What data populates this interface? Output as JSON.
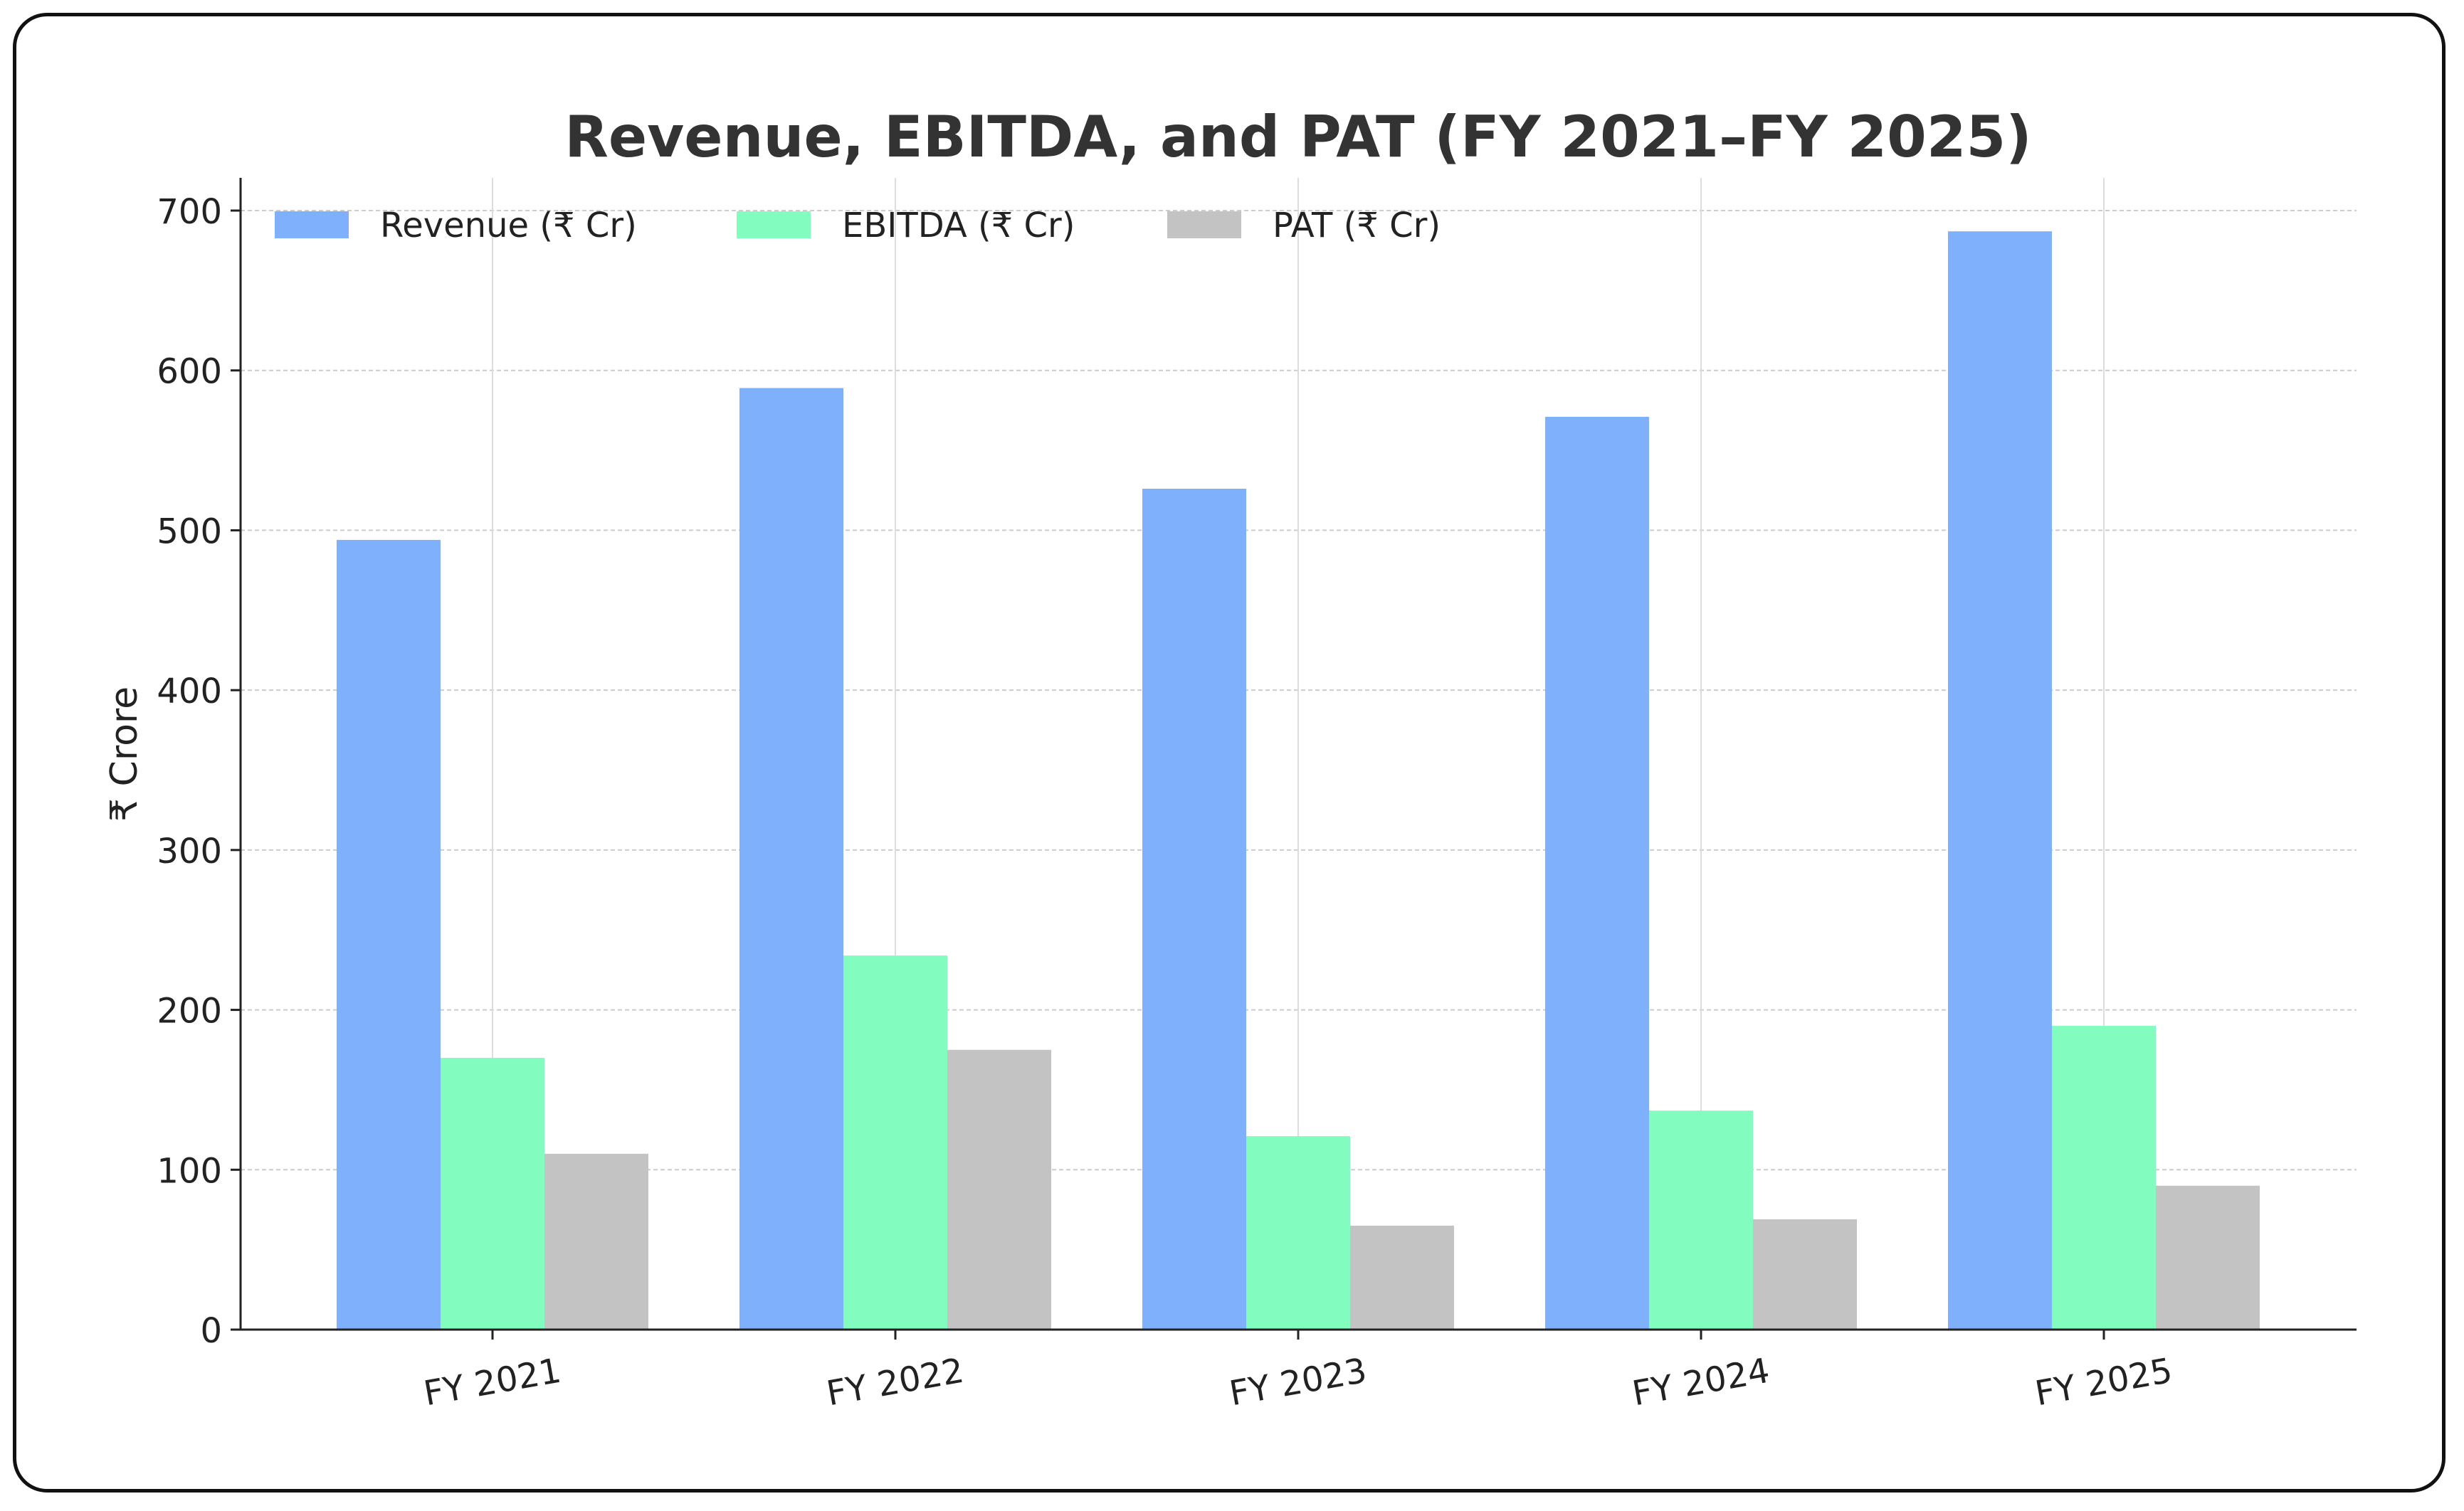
{
  "chart_data": {
    "type": "bar",
    "title": "Revenue, EBITDA, and PAT (FY 2021–FY 2025)",
    "xlabel": "",
    "ylabel": "₹ Crore",
    "ylim": [
      0,
      720
    ],
    "yticks": [
      0,
      100,
      200,
      300,
      400,
      500,
      600,
      700
    ],
    "grid": true,
    "legend_position": "top-left",
    "categories": [
      "FY 2021",
      "FY 2022",
      "FY 2023",
      "FY 2024",
      "FY 2025"
    ],
    "series": [
      {
        "name": "Revenue (₹ Cr)",
        "color": "#7eb0fc",
        "values": [
          494,
          589,
          526,
          571,
          687
        ]
      },
      {
        "name": "EBITDA (₹ Cr)",
        "color": "#82fdbf",
        "values": [
          170,
          234,
          121,
          137,
          190
        ]
      },
      {
        "name": "PAT (₹ Cr)",
        "color": "#c3c3c3",
        "values": [
          110,
          175,
          65,
          69,
          90
        ]
      }
    ]
  }
}
